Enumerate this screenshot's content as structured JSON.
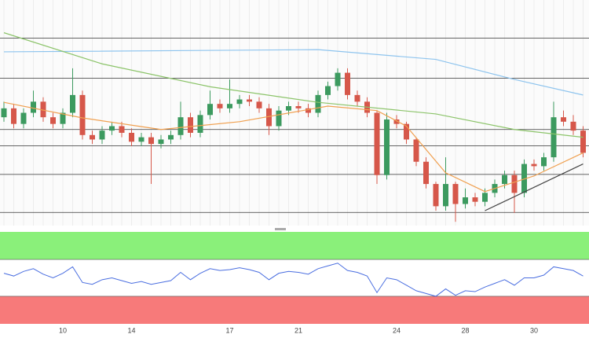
{
  "chart_data": [
    {
      "type": "candlestick",
      "categories": [
        null,
        null,
        null,
        null,
        null,
        null,
        "10",
        null,
        null,
        null,
        null,
        null,
        null,
        "14",
        null,
        null,
        null,
        null,
        null,
        null,
        null,
        null,
        null,
        "17",
        null,
        null,
        null,
        null,
        null,
        null,
        "21",
        null,
        null,
        null,
        null,
        null,
        null,
        null,
        null,
        null,
        "24",
        null,
        null,
        null,
        null,
        null,
        null,
        "28",
        null,
        null,
        null,
        null,
        null,
        null,
        "30",
        null,
        null,
        null,
        null,
        null
      ],
      "open": [
        48,
        52,
        45,
        50,
        55,
        48,
        45,
        50,
        58,
        40,
        38,
        42,
        44,
        41,
        37,
        39,
        36,
        38,
        40,
        48,
        41,
        49,
        54,
        52,
        54,
        56,
        55,
        52,
        44,
        51,
        53,
        52,
        50,
        58,
        62,
        68,
        58,
        55,
        50,
        22,
        47,
        45,
        38,
        28,
        18,
        8,
        18,
        9,
        12,
        10,
        14,
        18,
        22,
        14,
        27,
        26,
        30,
        48,
        46,
        42
      ],
      "high": [
        55,
        54,
        52,
        60,
        57,
        50,
        52,
        70,
        60,
        42,
        44,
        46,
        46,
        43,
        41,
        41,
        40,
        42,
        55,
        50,
        51,
        60,
        56,
        65,
        58,
        58,
        57,
        54,
        53,
        55,
        55,
        54,
        60,
        64,
        70,
        70,
        60,
        57,
        51,
        50,
        49,
        46,
        39,
        30,
        19,
        30,
        19,
        16,
        14,
        16,
        20,
        24,
        24,
        29,
        29,
        32,
        55,
        51,
        49,
        44
      ],
      "low": [
        46,
        43,
        43,
        48,
        46,
        43,
        43,
        48,
        38,
        36,
        36,
        40,
        39,
        35,
        35,
        18,
        34,
        36,
        38,
        39,
        39,
        47,
        50,
        50,
        52,
        53,
        50,
        40,
        42,
        49,
        50,
        48,
        48,
        56,
        60,
        56,
        53,
        48,
        18,
        20,
        43,
        36,
        26,
        16,
        6,
        6,
        1,
        7,
        8,
        8,
        12,
        16,
        5,
        12,
        24,
        24,
        28,
        44,
        40,
        30
      ],
      "close": [
        52,
        45,
        50,
        55,
        48,
        45,
        50,
        58,
        40,
        38,
        42,
        44,
        41,
        37,
        39,
        36,
        38,
        40,
        48,
        41,
        49,
        54,
        52,
        54,
        56,
        55,
        52,
        44,
        51,
        53,
        52,
        50,
        58,
        62,
        68,
        58,
        55,
        50,
        22,
        47,
        45,
        38,
        28,
        18,
        8,
        18,
        9,
        12,
        10,
        14,
        18,
        22,
        14,
        27,
        26,
        30,
        48,
        46,
        42,
        32
      ],
      "ylim": [
        0,
        100
      ],
      "up_color": "#3c9a5f",
      "down_color": "#d6574a",
      "levels": [
        83.6,
        65.5,
        42.5,
        35.2,
        22.3,
        5.2
      ],
      "level_color": "#333333",
      "overlays": [
        {
          "color": "#8ec4ee",
          "x": [
            0,
            32,
            44,
            52,
            59
          ],
          "values": [
            77.4,
            78.4,
            74,
            65,
            58
          ]
        },
        {
          "color": "#8cc46a",
          "x": [
            0,
            10,
            21,
            32,
            44,
            52,
            59
          ],
          "values": [
            86,
            72,
            61.7,
            54.7,
            49.5,
            42.5,
            39
          ]
        },
        {
          "color": "#f0a050",
          "x": [
            0,
            8,
            16,
            24,
            33,
            38,
            41,
            45,
            49,
            54,
            59
          ],
          "values": [
            54.7,
            47.7,
            42.5,
            46,
            53,
            51,
            44,
            23,
            14.6,
            21.6,
            32
          ]
        },
        {
          "color": "#444444",
          "x": [
            49,
            59
          ],
          "values": [
            6,
            27
          ]
        }
      ]
    },
    {
      "type": "line",
      "values": [
        55,
        52,
        57,
        60,
        54,
        50,
        55,
        62,
        45,
        43,
        48,
        50,
        47,
        44,
        46,
        43,
        45,
        47,
        56,
        48,
        55,
        60,
        58,
        59,
        61,
        59,
        56,
        48,
        55,
        57,
        56,
        54,
        60,
        63,
        66,
        58,
        56,
        52,
        34,
        50,
        48,
        42,
        36,
        33,
        30,
        38,
        31,
        36,
        35,
        40,
        44,
        48,
        42,
        50,
        50,
        53,
        62,
        60,
        58,
        52
      ],
      "color": "#4a6ee0",
      "ylim": [
        0,
        100
      ],
      "zones": [
        {
          "from": 70,
          "to": 100,
          "color": "#8af07a"
        },
        {
          "from": 0,
          "to": 30,
          "color": "#f77a7a"
        }
      ]
    }
  ]
}
